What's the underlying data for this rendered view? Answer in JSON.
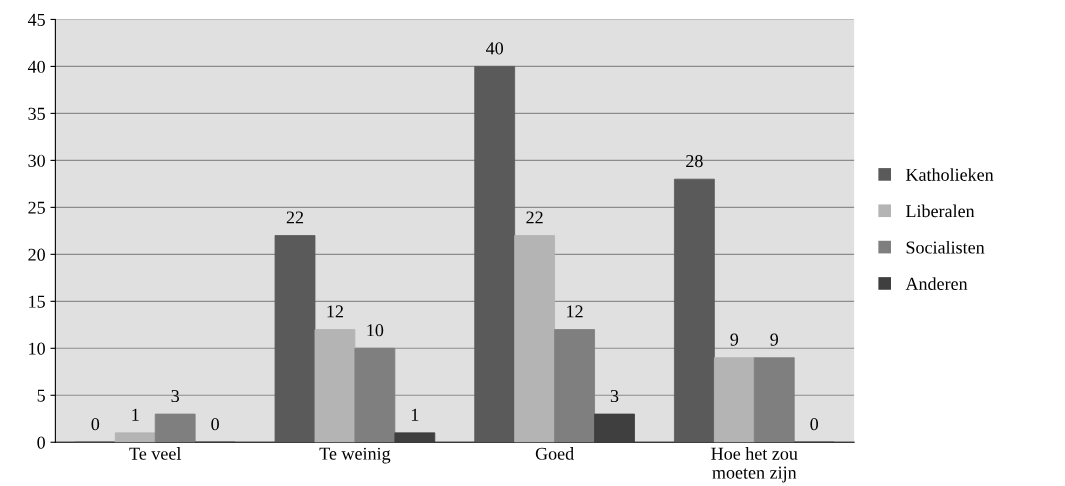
{
  "chart_data": {
    "type": "bar",
    "categories": [
      "Te veel",
      "Te weinig",
      "Goed",
      "Hoe het zou\nmoeten zijn"
    ],
    "series": [
      {
        "name": "Katholieken",
        "color": "#5a5a5a",
        "values": [
          0,
          22,
          40,
          28
        ]
      },
      {
        "name": "Liberalen",
        "color": "#b4b4b4",
        "values": [
          1,
          12,
          22,
          9
        ]
      },
      {
        "name": "Socialisten",
        "color": "#7f7f7f",
        "values": [
          3,
          10,
          12,
          9
        ]
      },
      {
        "name": "Anderen",
        "color": "#3f3f3f",
        "values": [
          0,
          1,
          3,
          0
        ]
      }
    ],
    "ylim": [
      0,
      45
    ],
    "yticks": [
      0,
      5,
      10,
      15,
      20,
      25,
      30,
      35,
      40,
      45
    ],
    "grid": "y",
    "legend": "right",
    "data_labels": true
  }
}
